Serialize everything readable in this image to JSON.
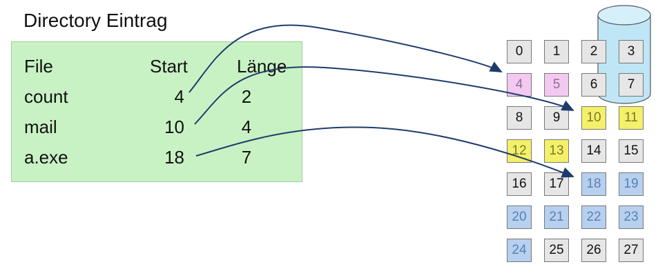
{
  "title": "Directory Eintrag",
  "headers": {
    "file": "File",
    "start": "Start",
    "length": "Länge"
  },
  "entries": [
    {
      "file": "count",
      "start": "4",
      "length": "2"
    },
    {
      "file": "mail",
      "start": "10",
      "length": "4"
    },
    {
      "file": "a.exe",
      "start": "18",
      "length": "7"
    }
  ],
  "blocks": [
    "0",
    "1",
    "2",
    "3",
    "4",
    "5",
    "6",
    "7",
    "8",
    "9",
    "10",
    "11",
    "12",
    "13",
    "14",
    "15",
    "16",
    "17",
    "18",
    "19",
    "20",
    "21",
    "22",
    "23",
    "24",
    "25",
    "26",
    "27"
  ],
  "colors": {
    "directory_bg": "#c9f2c4",
    "block_default": "#e6e6e6",
    "count": "#f3c9f1",
    "mail": "#f4f06a",
    "a_exe": "#b7d0ef",
    "disk": "#bfe6f7",
    "arrow": "#1d3c6b"
  }
}
